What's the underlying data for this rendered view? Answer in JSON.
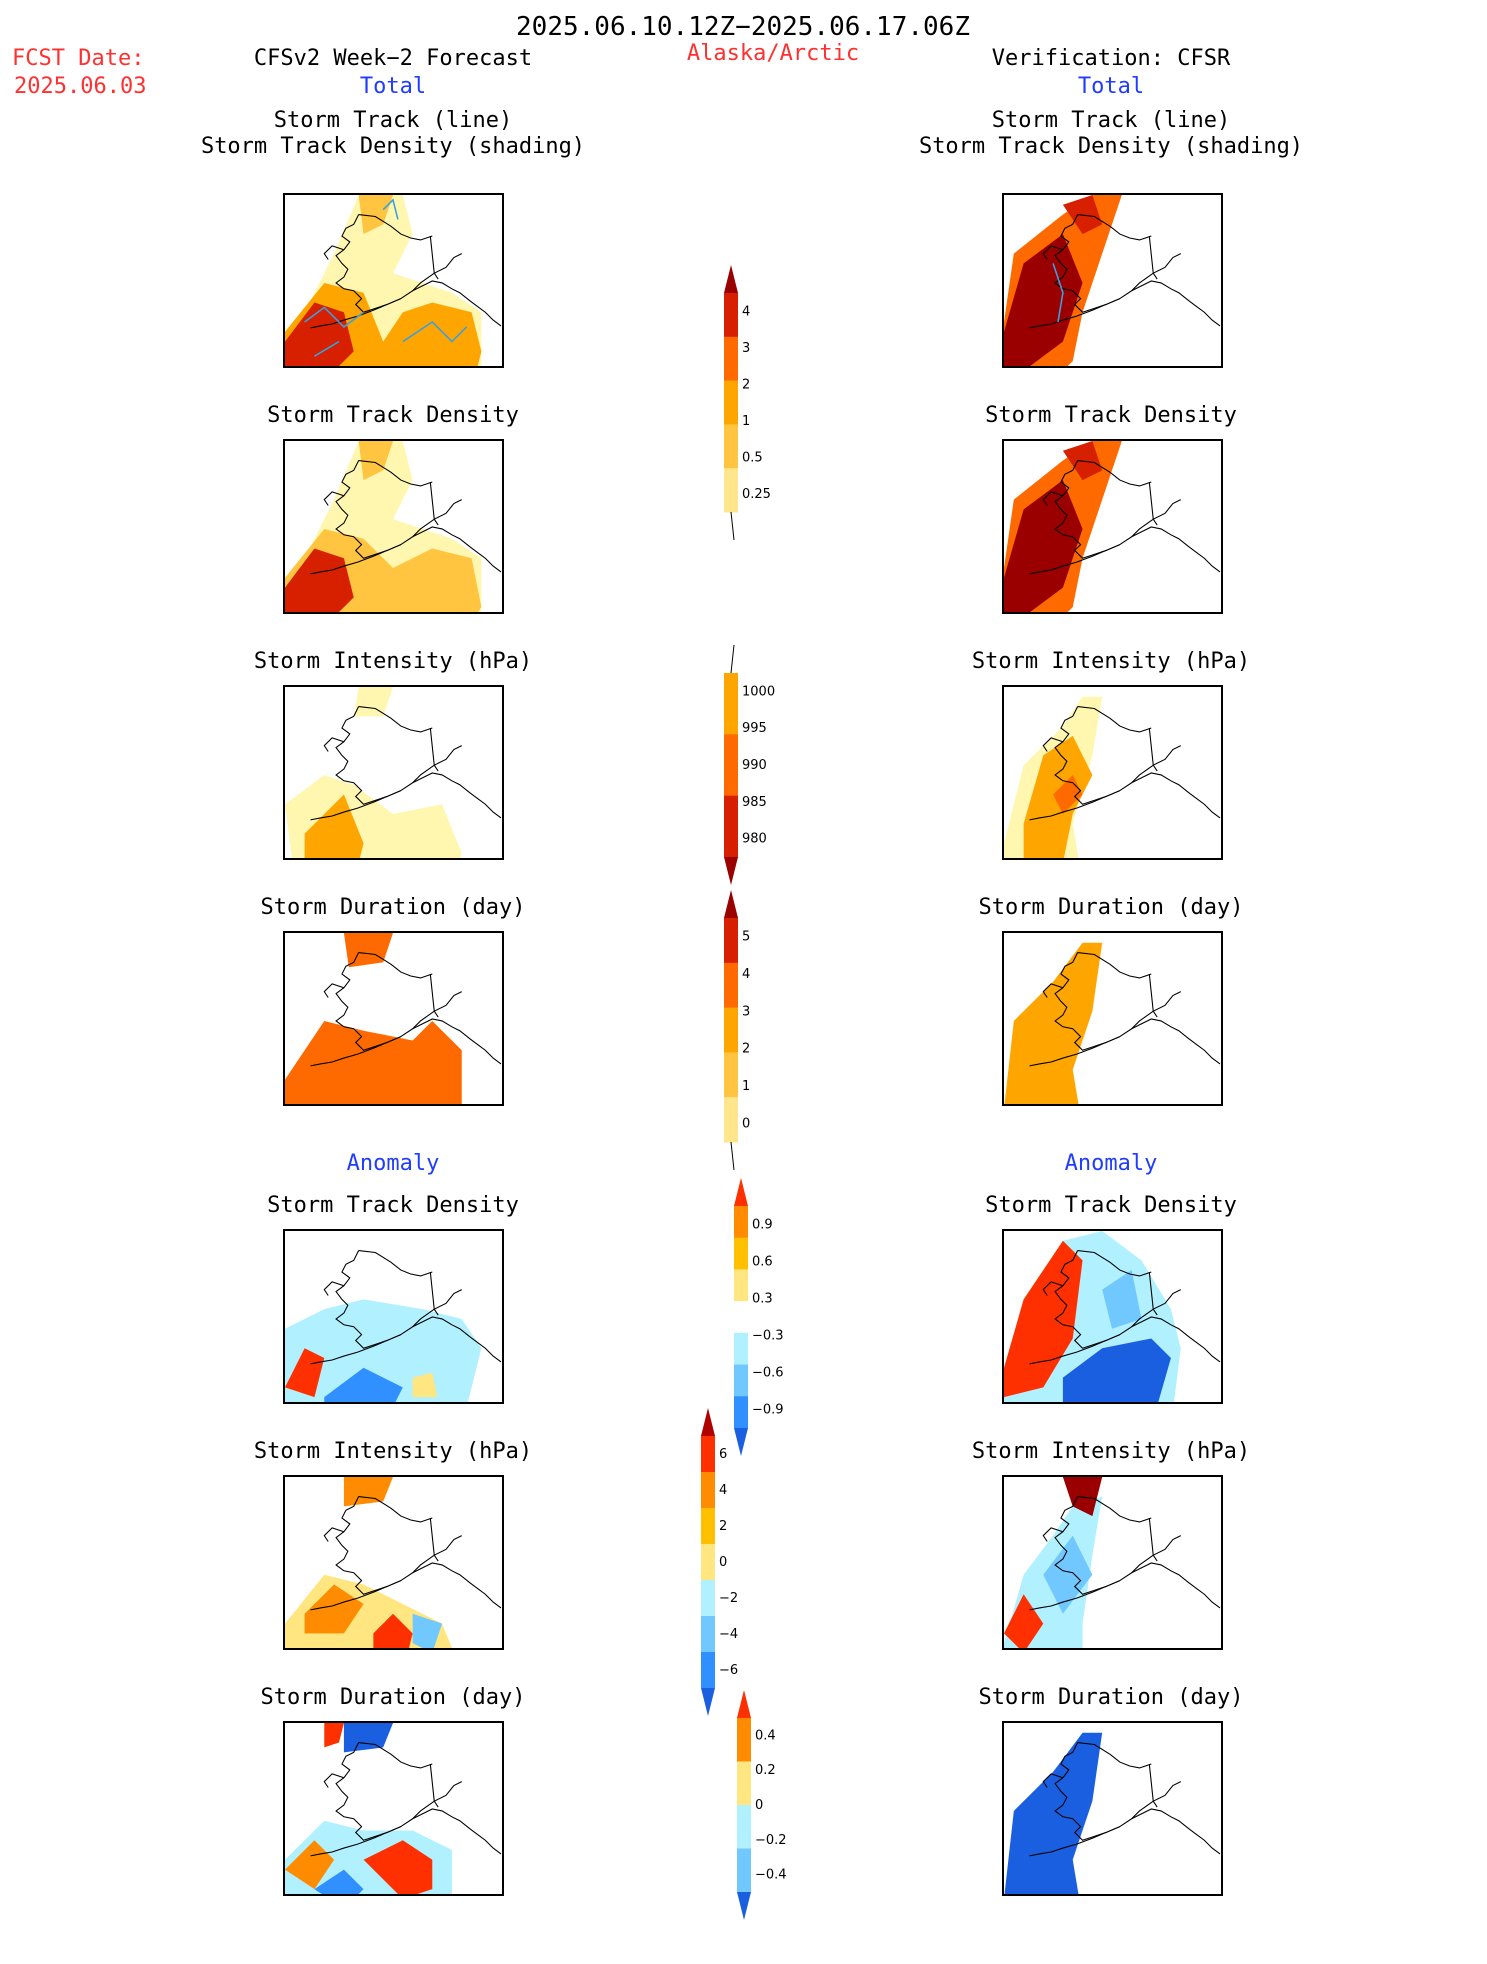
{
  "header": {
    "date_range": "2025.06.10.12Z−2025.06.17.06Z",
    "fcst_label": "FCST Date:",
    "fcst_date": "2025.06.03",
    "region": "Alaska/Arctic",
    "left_title": "CFSv2 Week−2 Forecast",
    "right_title": "Verification: CFSR",
    "total_label": "Total",
    "anomaly_label": "Anomaly"
  },
  "panel_titles": {
    "track_line": "Storm Track (line)",
    "track_shading": "Storm Track Density (shading)",
    "density": "Storm Track Density",
    "intensity": "Storm Intensity (hPa)",
    "duration": "Storm Duration (day)"
  },
  "colorbars": {
    "density_total": {
      "labels": [
        "4",
        "3",
        "2",
        "1",
        "0.5",
        "0.25"
      ],
      "colors": [
        "#9b0000",
        "#d62000",
        "#ff6a00",
        "#ffa500",
        "#ffc440",
        "#ffe68c",
        "#fff7b0"
      ]
    },
    "intensity_total": {
      "labels": [
        "1000",
        "995",
        "990",
        "985",
        "980"
      ],
      "colors": [
        "#fff7b0",
        "#ffa500",
        "#ff6a00",
        "#d62000",
        "#9b0000"
      ]
    },
    "duration_total": {
      "labels": [
        "5",
        "4",
        "3",
        "2",
        "1",
        "0"
      ],
      "colors": [
        "#9b0000",
        "#d62000",
        "#ff6a00",
        "#ffa500",
        "#ffc440",
        "#ffe68c",
        "#fff7b0"
      ]
    },
    "density_anom": {
      "labels": [
        "0.9",
        "0.6",
        "0.3",
        "−0.3",
        "−0.6",
        "−0.9"
      ],
      "colors": [
        "#ff3000",
        "#ff8c00",
        "#ffc000",
        "#ffe680",
        "#ffffff",
        "#b0f0ff",
        "#70c8ff",
        "#3090ff",
        "#1a5fe0"
      ]
    },
    "intensity_anom": {
      "labels": [
        "6",
        "4",
        "2",
        "0",
        "−2",
        "−4",
        "−6"
      ],
      "colors": [
        "#b00000",
        "#ff3000",
        "#ff8c00",
        "#ffc000",
        "#ffe680",
        "#b0f0ff",
        "#70c8ff",
        "#3090ff",
        "#1a5fe0"
      ]
    },
    "duration_anom": {
      "labels": [
        "0.4",
        "0.2",
        "0",
        "−0.2",
        "−0.4"
      ],
      "colors": [
        "#ff3000",
        "#ff8c00",
        "#ffe680",
        "#b0f0ff",
        "#70c8ff",
        "#1a5fe0"
      ]
    }
  }
}
